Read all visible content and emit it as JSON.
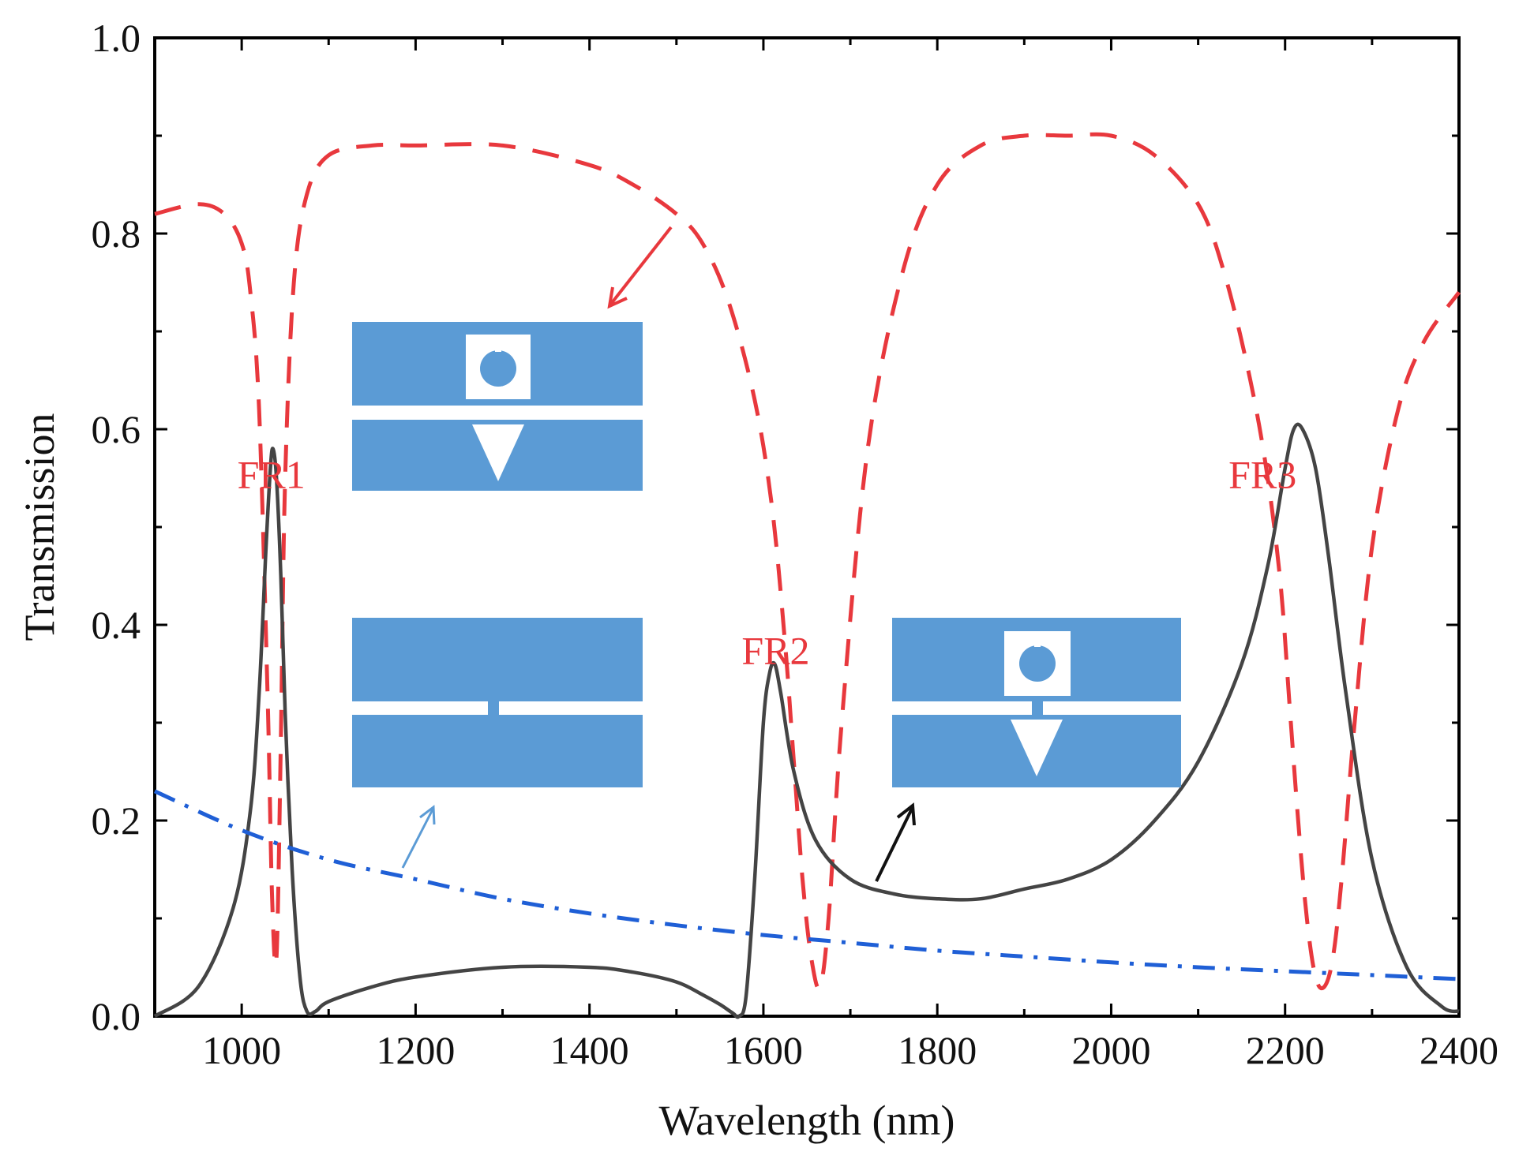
{
  "chart_data": {
    "type": "line",
    "title": "",
    "xlabel": "Wavelength (nm)",
    "ylabel": "Transmission",
    "xlim": [
      900,
      2400
    ],
    "ylim": [
      0.0,
      1.0
    ],
    "grid": false,
    "x_ticks": [
      1000,
      1200,
      1400,
      1600,
      1800,
      2000,
      2200,
      2400
    ],
    "y_ticks": [
      0.0,
      0.2,
      0.4,
      0.6,
      0.8,
      1.0
    ],
    "x_tick_labels": [
      "1000",
      "1200",
      "1400",
      "1600",
      "1800",
      "2000",
      "2200",
      "2400"
    ],
    "y_tick_labels": [
      "0.0",
      "0.2",
      "0.4",
      "0.6",
      "0.8",
      "1.0"
    ],
    "colors": {
      "red": "#e8383d",
      "black": "#444444",
      "blue": "#1f5fd6",
      "inset": "#5b9bd5"
    },
    "series": [
      {
        "style": "dashed",
        "color": "#e8383d",
        "x": [
          900,
          950,
          980,
          1000,
          1010,
          1020,
          1030,
          1035,
          1040,
          1045,
          1050,
          1060,
          1075,
          1100,
          1150,
          1200,
          1300,
          1400,
          1450,
          1500,
          1530,
          1560,
          1590,
          1610,
          1625,
          1635,
          1645,
          1655,
          1665,
          1675,
          1690,
          1720,
          1760,
          1800,
          1850,
          1900,
          1950,
          2000,
          2050,
          2100,
          2130,
          2160,
          2180,
          2195,
          2205,
          2215,
          2225,
          2235,
          2245,
          2255,
          2265,
          2280,
          2300,
          2330,
          2360,
          2400
        ],
        "y": [
          0.82,
          0.83,
          0.82,
          0.79,
          0.74,
          0.62,
          0.32,
          0.12,
          0.06,
          0.28,
          0.55,
          0.75,
          0.84,
          0.88,
          0.89,
          0.89,
          0.89,
          0.87,
          0.85,
          0.82,
          0.79,
          0.73,
          0.63,
          0.52,
          0.38,
          0.26,
          0.14,
          0.06,
          0.03,
          0.1,
          0.3,
          0.58,
          0.76,
          0.85,
          0.89,
          0.9,
          0.9,
          0.9,
          0.88,
          0.83,
          0.76,
          0.65,
          0.55,
          0.44,
          0.32,
          0.2,
          0.1,
          0.04,
          0.03,
          0.06,
          0.14,
          0.3,
          0.48,
          0.62,
          0.69,
          0.74
        ]
      },
      {
        "style": "solid",
        "color": "#444444",
        "x": [
          900,
          950,
          990,
          1010,
          1020,
          1028,
          1033,
          1036,
          1040,
          1045,
          1050,
          1058,
          1067,
          1075,
          1085,
          1100,
          1150,
          1200,
          1300,
          1400,
          1450,
          1500,
          1530,
          1550,
          1565,
          1572,
          1580,
          1590,
          1600,
          1607,
          1613,
          1620,
          1635,
          1660,
          1700,
          1750,
          1800,
          1850,
          1900,
          1950,
          2000,
          2050,
          2100,
          2150,
          2180,
          2200,
          2210,
          2220,
          2235,
          2250,
          2270,
          2300,
          2340,
          2380,
          2400
        ],
        "y": [
          0.0,
          0.03,
          0.11,
          0.21,
          0.33,
          0.48,
          0.56,
          0.58,
          0.55,
          0.45,
          0.31,
          0.15,
          0.04,
          0.005,
          0.005,
          0.015,
          0.03,
          0.04,
          0.05,
          0.05,
          0.045,
          0.035,
          0.022,
          0.012,
          0.003,
          0.0,
          0.02,
          0.14,
          0.3,
          0.35,
          0.36,
          0.33,
          0.25,
          0.18,
          0.14,
          0.125,
          0.12,
          0.12,
          0.13,
          0.14,
          0.16,
          0.2,
          0.26,
          0.36,
          0.46,
          0.56,
          0.6,
          0.6,
          0.56,
          0.47,
          0.33,
          0.16,
          0.05,
          0.01,
          0.005
        ]
      },
      {
        "style": "dash-dot",
        "color": "#1f5fd6",
        "x": [
          900,
          1000,
          1100,
          1200,
          1300,
          1400,
          1500,
          1600,
          1700,
          1800,
          1900,
          2000,
          2100,
          2200,
          2300,
          2400
        ],
        "y": [
          0.23,
          0.19,
          0.16,
          0.14,
          0.12,
          0.105,
          0.093,
          0.083,
          0.075,
          0.067,
          0.061,
          0.055,
          0.05,
          0.046,
          0.042,
          0.038
        ]
      }
    ],
    "annotations": [
      {
        "text": "FR1",
        "x": 995,
        "y": 0.54,
        "color": "#e8383d"
      },
      {
        "text": "FR2",
        "x": 1575,
        "y": 0.36,
        "color": "#e8383d"
      },
      {
        "text": "FR3",
        "x": 2135,
        "y": 0.54,
        "color": "#e8383d"
      }
    ]
  }
}
